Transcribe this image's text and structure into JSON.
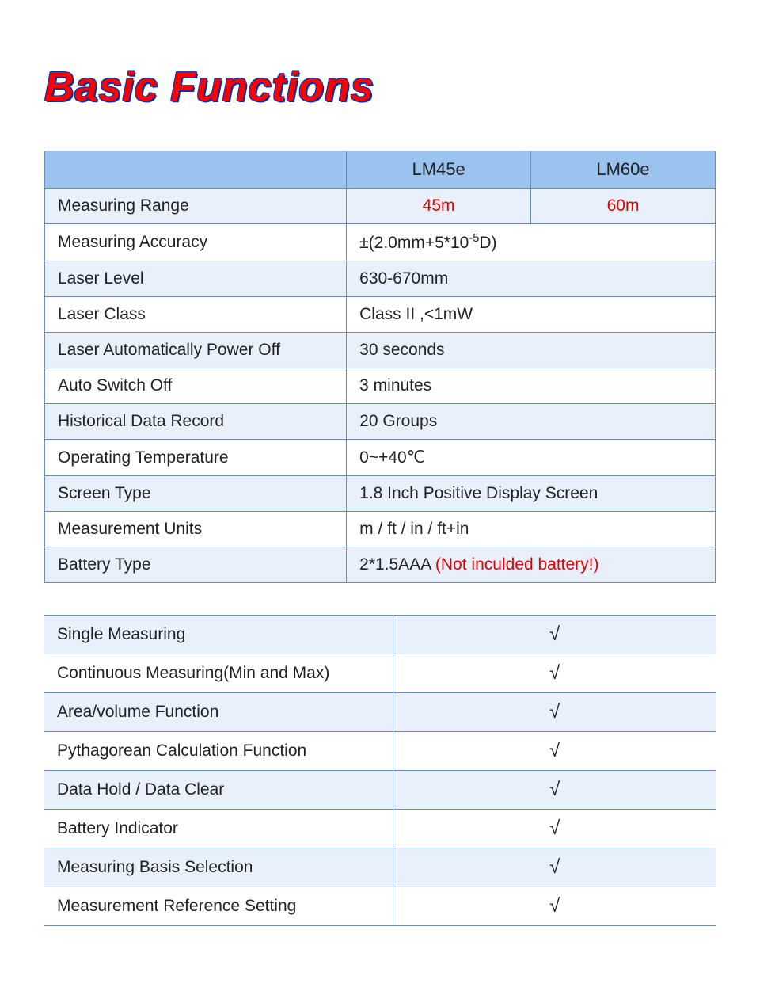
{
  "title": "Basic Functions",
  "colors": {
    "title_fill": "#ff0000",
    "title_outline": "#0033aa",
    "border": "#6b8db5",
    "header_bg": "#9ac3f0",
    "row_alt_bg": "#e7f0fb",
    "row_bg": "#ffffff",
    "text": "#222222",
    "highlight_text": "#e60000"
  },
  "specs": {
    "header": {
      "blank": "",
      "col1": "LM45e",
      "col2": "LM60e"
    },
    "rows": [
      {
        "label": "Measuring Range",
        "v1": "45m",
        "v2": "60m",
        "highlight": true
      },
      {
        "label": "Measuring Accuracy",
        "value_html": "±(2.0mm+5*10<sup>-5</sup>D)"
      },
      {
        "label": "Laser Level",
        "value": "630-670mm"
      },
      {
        "label": "Laser Class",
        "value": "Class II ,<1mW"
      },
      {
        "label": "Laser Automatically Power Off",
        "value": "30 seconds"
      },
      {
        "label": "Auto Switch Off",
        "value": "3 minutes"
      },
      {
        "label": "Historical Data Record",
        "value": "20 Groups"
      },
      {
        "label": "Operating Temperature",
        "value": "0~+40℃"
      },
      {
        "label": "Screen Type",
        "value": "1.8 Inch Positive Display Screen"
      },
      {
        "label": "Measurement Units",
        "value": " m / ft / in / ft+in"
      },
      {
        "label": "Battery Type",
        "value_prefix": "2*1.5AAA ",
        "value_note": "(Not inculded battery!)"
      }
    ]
  },
  "features": {
    "check": "√",
    "rows": [
      "Single Measuring",
      "Continuous Measuring(Min and Max)",
      "Area/volume Function",
      "Pythagorean Calculation Function",
      "Data Hold / Data Clear",
      "Battery Indicator",
      "Measuring Basis Selection",
      "Measurement Reference Setting"
    ]
  }
}
